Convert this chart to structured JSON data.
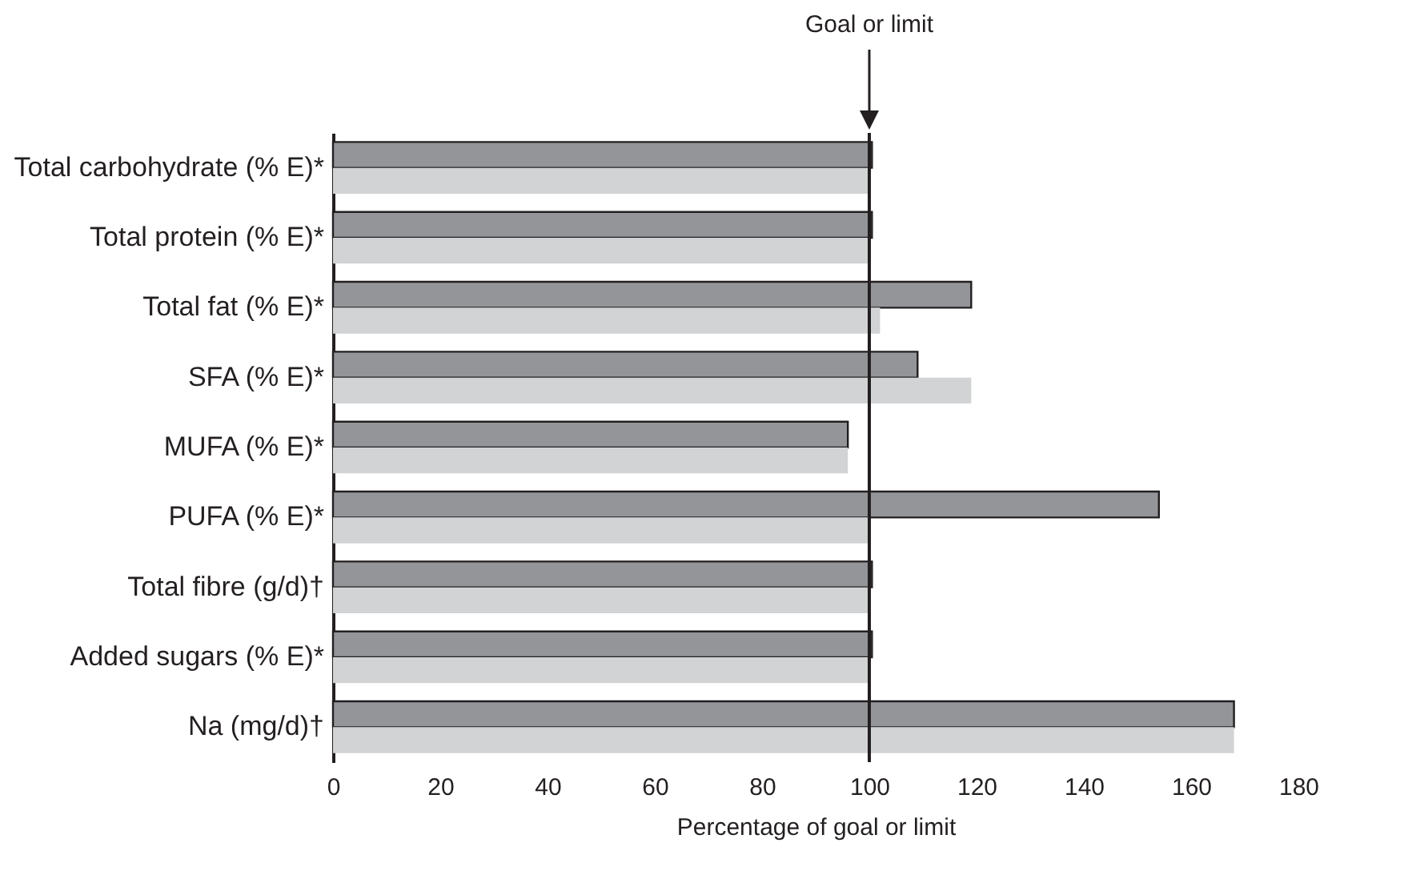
{
  "chart_data": {
    "type": "bar",
    "orientation": "horizontal",
    "categories": [
      "Total carbohydrate (% E)*",
      "Total protein (% E)*",
      "Total fat (% E)*",
      "SFA (% E)*",
      "MUFA (% E)*",
      "PUFA (% E)*",
      "Total fibre (g/d)†",
      "Added sugars (% E)*",
      "Na (mg/d)†"
    ],
    "series": [
      {
        "color": "#939598",
        "values": [
          100.5,
          100.5,
          119,
          109,
          96,
          154,
          100.5,
          100.5,
          168
        ]
      },
      {
        "color": "#d1d3d4",
        "values": [
          100,
          100,
          102,
          119,
          96,
          100,
          100,
          100,
          168
        ]
      }
    ],
    "xlabel": "Percentage of goal or limit",
    "xlim": [
      0,
      180
    ],
    "xticks": [
      0,
      20,
      40,
      60,
      80,
      100,
      120,
      140,
      160,
      180
    ],
    "ref_lines": [
      {
        "axis": "x",
        "value": 100,
        "label": "Goal or limit",
        "color": "#231f20"
      }
    ],
    "grid": false
  }
}
